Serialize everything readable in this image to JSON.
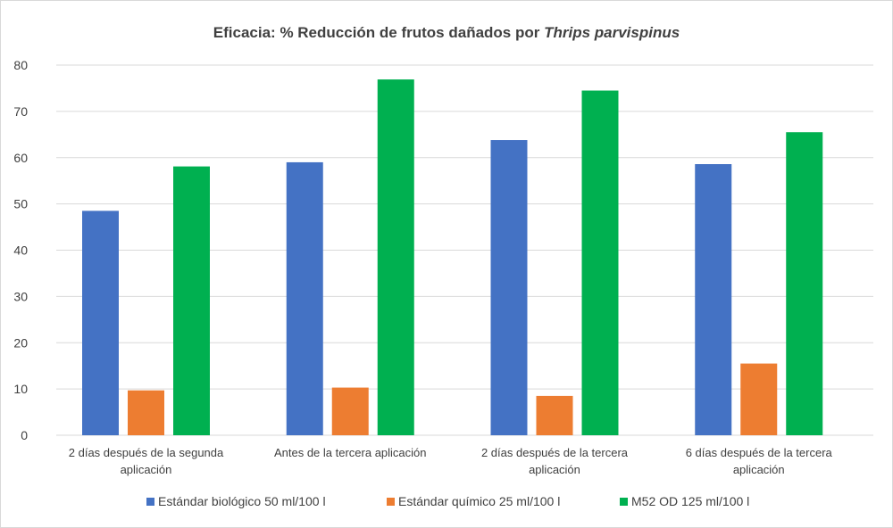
{
  "chart_data": {
    "type": "bar",
    "title_main": "Eficacia: % Reducción de frutos dañados por ",
    "title_italic": "Thrips parvispinus",
    "categories": [
      [
        "2 días después de la segunda",
        "aplicación"
      ],
      [
        "Antes de la tercera aplicación"
      ],
      [
        "2 días después de la tercera",
        "aplicación"
      ],
      [
        "6 días después de la tercera",
        "aplicación"
      ]
    ],
    "series": [
      {
        "name": "Estándar biológico 50 ml/100 l",
        "color": "#4472C4",
        "values": [
          48.5,
          59.0,
          63.8,
          58.6
        ]
      },
      {
        "name": "Estándar químico 25 ml/100 l",
        "color": "#ED7D31",
        "values": [
          9.7,
          10.3,
          8.5,
          15.5
        ]
      },
      {
        "name": "M52 OD 125 ml/100 l",
        "color": "#00B050",
        "values": [
          58.1,
          76.9,
          74.5,
          65.5
        ]
      }
    ],
    "ylim": [
      0,
      80
    ],
    "yticks": [
      0,
      10,
      20,
      30,
      40,
      50,
      60,
      70,
      80
    ],
    "grid": true,
    "legend_position": "bottom"
  }
}
